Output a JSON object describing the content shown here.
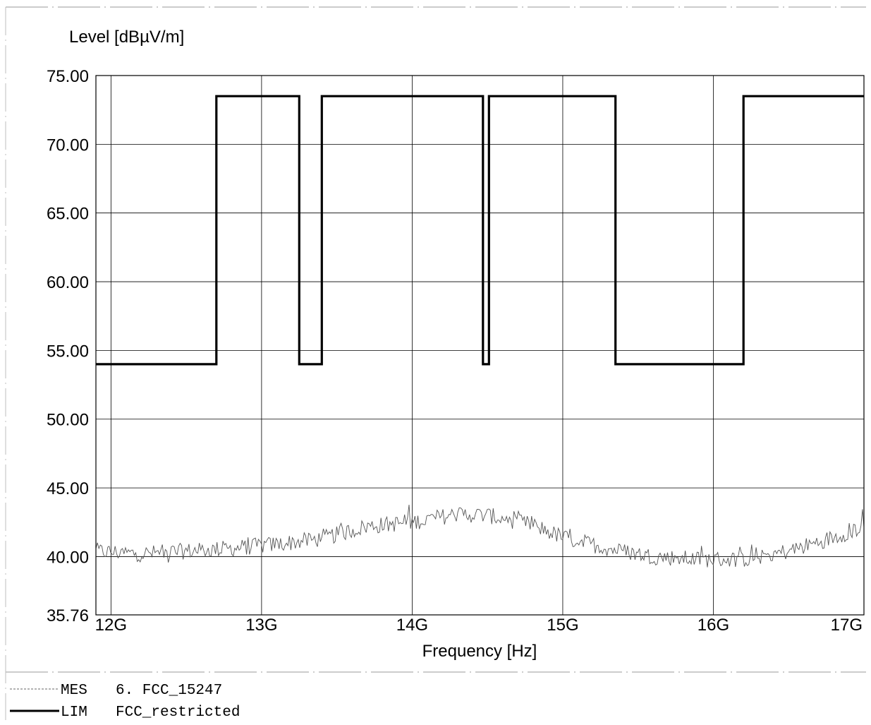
{
  "chart_data": {
    "type": "line",
    "ylabel": "Level [dBµV/m]",
    "xlabel": "Frequency [Hz]",
    "x_range_hz": [
      11900000000,
      17000000000
    ],
    "y_range": [
      35.76,
      75.0
    ],
    "y_ticks": [
      75.0,
      70.0,
      65.0,
      60.0,
      55.0,
      50.0,
      45.0,
      40.0,
      35.76
    ],
    "y_tick_labels": [
      "75.00",
      "70.00",
      "65.00",
      "60.00",
      "55.00",
      "50.00",
      "45.00",
      "40.00",
      "35.76"
    ],
    "x_ticks_hz": [
      12000000000,
      13000000000,
      14000000000,
      15000000000,
      16000000000,
      17000000000
    ],
    "x_tick_labels": [
      "12G",
      "13G",
      "14G",
      "15G",
      "16G",
      "17G"
    ],
    "grid": true,
    "series": [
      {
        "name": "MES",
        "label": "6. FCC_15247",
        "color": "#555555",
        "style": "thin-noisy",
        "x_hz": [
          11900000000,
          12200000000,
          12500000000,
          12800000000,
          13100000000,
          13400000000,
          13700000000,
          14000000000,
          14300000000,
          14500000000,
          14800000000,
          15000000000,
          15300000000,
          15600000000,
          15900000000,
          16200000000,
          16500000000,
          16800000000,
          17000000000
        ],
        "y": [
          40.4,
          40.2,
          40.4,
          40.6,
          40.9,
          41.3,
          42.2,
          42.5,
          43.1,
          43.0,
          42.3,
          41.4,
          40.6,
          40.0,
          39.8,
          39.8,
          40.4,
          41.4,
          42.2
        ],
        "noise_amplitude_db": 0.6,
        "sample_count": 520
      },
      {
        "name": "LIM",
        "label": "FCC_restricted",
        "color": "#000000",
        "style": "thick-step",
        "x_hz": [
          11900000000,
          12700000000,
          12700000000,
          13250000000,
          13250000000,
          13400000000,
          13400000000,
          14470000000,
          14470000000,
          14510000000,
          14510000000,
          15350000000,
          15350000000,
          16200000000,
          16200000000,
          17000000000
        ],
        "y": [
          54.0,
          54.0,
          73.5,
          73.5,
          54.0,
          54.0,
          73.5,
          73.5,
          54.0,
          54.0,
          73.5,
          73.5,
          54.0,
          54.0,
          73.5,
          73.5
        ]
      }
    ],
    "legend_position": "bottom-left"
  }
}
